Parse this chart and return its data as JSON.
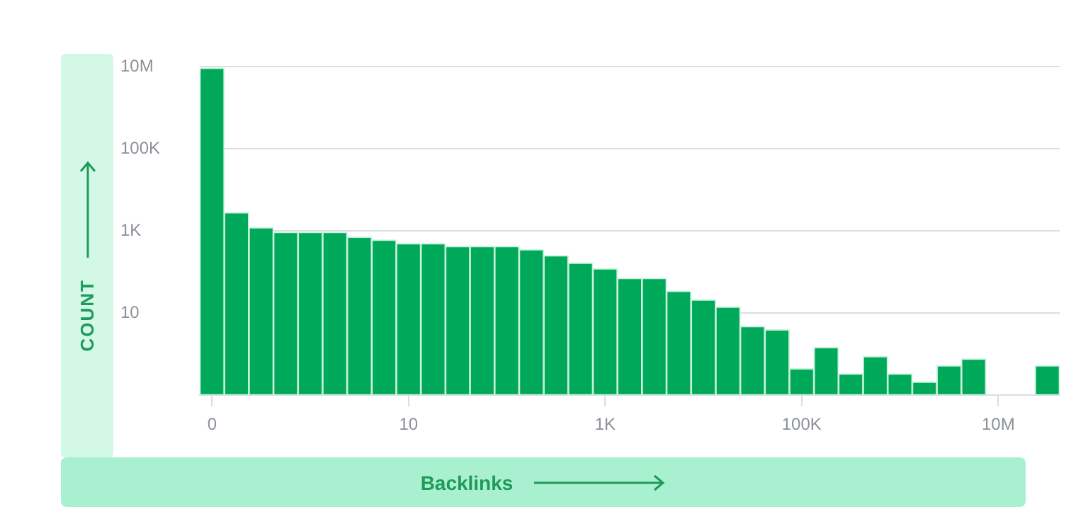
{
  "chart_data": {
    "type": "bar",
    "xlabel": "Backlinks",
    "ylabel": "COUNT",
    "color": "#00a85a",
    "log": "y",
    "grid": "y",
    "categories": [
      "0",
      null,
      null,
      null,
      null,
      null,
      null,
      null,
      "10",
      null,
      null,
      null,
      null,
      null,
      null,
      null,
      "1K",
      null,
      null,
      null,
      null,
      null,
      null,
      null,
      "100K",
      null,
      null,
      null,
      null,
      null,
      null,
      null,
      "10M",
      null,
      null
    ],
    "values": [
      9200000,
      2800,
      1200,
      930,
      930,
      930,
      710,
      600,
      490,
      490,
      420,
      420,
      420,
      350,
      250,
      165,
      120,
      70,
      70,
      34,
      21,
      14,
      4.7,
      3.9,
      0.44,
      1.45,
      0.33,
      0.87,
      0.33,
      0.21,
      0.52,
      0.76,
      null,
      null,
      0.52
    ],
    "ylim": [
      0.1,
      10000000
    ],
    "yticks": [
      {
        "value": 10,
        "label": "10"
      },
      {
        "value": 1000,
        "label": "1K"
      },
      {
        "value": 100000,
        "label": "100K"
      },
      {
        "value": 10000000,
        "label": "10M"
      }
    ]
  }
}
